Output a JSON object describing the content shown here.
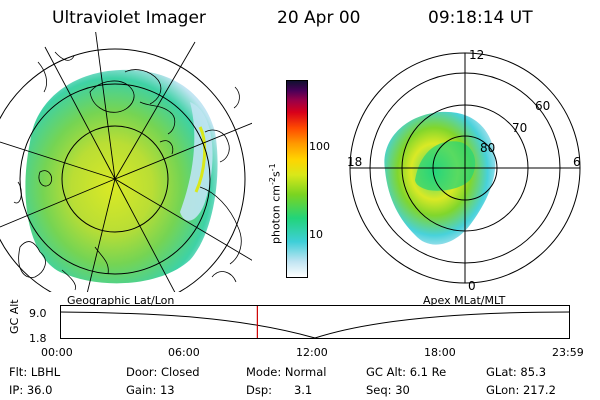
{
  "header": {
    "title": "Ultraviolet Imager",
    "date": "20 Apr 00",
    "time": "09:18:14 UT"
  },
  "left_panel": {
    "caption": "Geographic Lat/Lon"
  },
  "right_panel": {
    "caption": "Apex MLat/MLT",
    "lat_labels": [
      "60",
      "70",
      "80"
    ],
    "mlt_labels": [
      "12",
      "18",
      "6",
      "0"
    ]
  },
  "colorbar": {
    "unit_label": "photon cm",
    "unit_sup1": "-2",
    "unit_s": "s",
    "unit_sup2": "-1",
    "ticks": [
      "100",
      "10"
    ],
    "colors": [
      "#ffffff",
      "#bfe4f2",
      "#3ecfd8",
      "#22d47a",
      "#7ad421",
      "#d8e81a",
      "#ffd400",
      "#ff9a00",
      "#ff4a00",
      "#d8001a",
      "#9a0048",
      "#4a0058",
      "#101030"
    ]
  },
  "timeline": {
    "axis_label": "GC Alt",
    "y_ticks": [
      "9.0",
      "1.8"
    ],
    "x_ticks": [
      "00:00",
      "06:00",
      "12:00",
      "18:00",
      "23:59"
    ],
    "marker_time_fraction": 0.387
  },
  "info": {
    "row1": [
      "Flt: LBHL",
      "Door: Closed",
      "Mode: Normal",
      "GC Alt: 6.1 Re",
      "GLat: 85.3"
    ],
    "row2": [
      "IP: 36.0",
      "Gain: 13",
      "Dsp:      3.1",
      "Seq: 30",
      "GLon: 217.2"
    ]
  }
}
